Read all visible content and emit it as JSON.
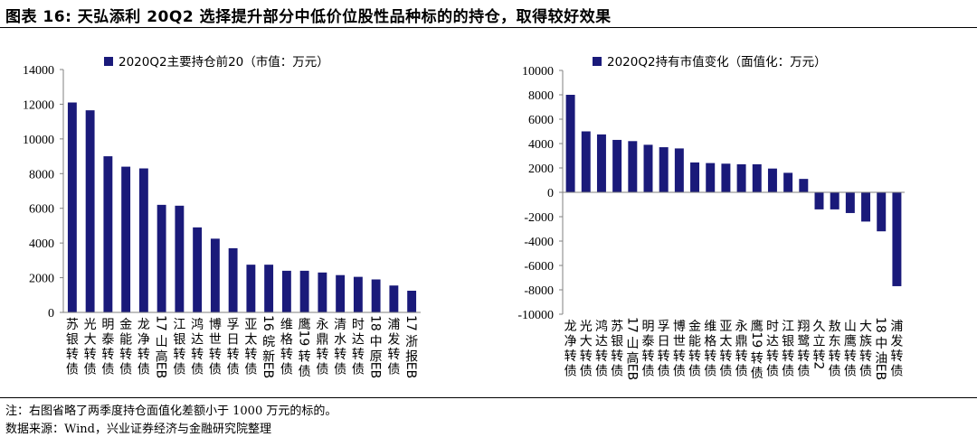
{
  "header": {
    "title": "图表 16:  天弘添利 20Q2 选择提升部分中低价位股性品种标的的持仓，取得较好效果"
  },
  "footer": {
    "note": "注：右图省略了两季度持仓面值化差额小于 1000 万元的标的。",
    "source": "数据来源：Wind，兴业证券经济与金融研究院整理"
  },
  "colors": {
    "bar": "#1a1a7a",
    "axis": "#808080"
  },
  "chart_data": [
    {
      "type": "bar",
      "legend": "2020Q2主要持仓前20（市值：万元）",
      "ylim": [
        0,
        14000
      ],
      "yticks": [
        0,
        2000,
        4000,
        6000,
        8000,
        10000,
        12000,
        14000
      ],
      "categories": [
        "苏银转债",
        "光大转债",
        "明泰转债",
        "金能转债",
        "龙净转债",
        "17山高EB",
        "江银转债",
        "鸿达转债",
        "博世转债",
        "孚日转债",
        "亚太转债",
        "16皖新EB",
        "维格转债",
        "鹰19转债",
        "永鼎转债",
        "清水转债",
        "时达转债",
        "18中原EB",
        "浦发转债",
        "17浙报EB"
      ],
      "values": [
        12100,
        11650,
        9000,
        8400,
        8300,
        6200,
        6150,
        4900,
        4250,
        3700,
        2750,
        2750,
        2400,
        2400,
        2300,
        2150,
        2050,
        1900,
        1550,
        1250
      ]
    },
    {
      "type": "bar",
      "legend": "2020Q2持有市值变化（面值化：万元）",
      "ylim": [
        -10000,
        10000
      ],
      "yticks": [
        -10000,
        -8000,
        -6000,
        -4000,
        -2000,
        0,
        2000,
        4000,
        6000,
        8000,
        10000
      ],
      "categories": [
        "龙净转债",
        "光大转债",
        "鸿达转债",
        "苏银转债",
        "17山高EB",
        "明泰转债",
        "孚日转债",
        "博世转债",
        "金能转债",
        "维格转债",
        "亚太转债",
        "永鼎转债",
        "鹰19转债",
        "时达转债",
        "江银转债",
        "翔鹭转债",
        "久立转2",
        "敖东转债",
        "山鹰转债",
        "大族转债",
        "18中油EB",
        "浦发转债"
      ],
      "values": [
        8000,
        5000,
        4750,
        4300,
        4200,
        3900,
        3700,
        3600,
        2450,
        2400,
        2350,
        2300,
        2300,
        1950,
        1600,
        1100,
        -1400,
        -1400,
        -1700,
        -2400,
        -3200,
        -7700
      ]
    }
  ]
}
